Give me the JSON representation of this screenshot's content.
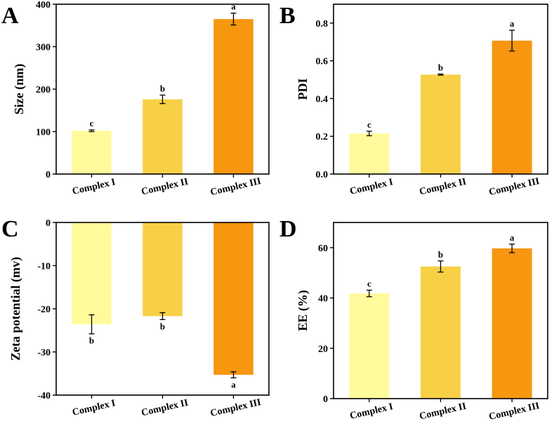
{
  "chart_data": [
    {
      "panel": "A",
      "type": "bar",
      "categories": [
        "Complex I",
        "Complex II",
        "Complex III"
      ],
      "values": [
        102,
        176,
        365
      ],
      "errors": [
        2,
        10,
        14
      ],
      "significance": [
        "c",
        "b",
        "a"
      ],
      "ylabel": "Size (nm)",
      "xlabel": "",
      "ylim": [
        0,
        400
      ],
      "yticks": [
        "0",
        "100",
        "200",
        "300",
        "400"
      ],
      "ytick_values": [
        0,
        100,
        200,
        300,
        400
      ],
      "colors": [
        "#FFFB9C",
        "#F7D046",
        "#F7960F"
      ]
    },
    {
      "panel": "B",
      "type": "bar",
      "categories": [
        "Complex I",
        "Complex II",
        "Complex III"
      ],
      "values": [
        0.215,
        0.527,
        0.707
      ],
      "errors": [
        0.012,
        0.003,
        0.055
      ],
      "significance": [
        "c",
        "b",
        "a"
      ],
      "ylabel": "PDI",
      "xlabel": "",
      "ylim": [
        0,
        0.9
      ],
      "yticks": [
        "0.0",
        "0.2",
        "0.4",
        "0.6",
        "0.8"
      ],
      "ytick_values": [
        0,
        0.2,
        0.4,
        0.6,
        0.8
      ],
      "colors": [
        "#FFFB9C",
        "#F7D046",
        "#F7960F"
      ]
    },
    {
      "panel": "C",
      "type": "bar",
      "categories": [
        "Complex I",
        "Complex II",
        "Complex III"
      ],
      "values": [
        -23.6,
        -21.7,
        -35.3
      ],
      "errors": [
        2.2,
        0.8,
        0.7
      ],
      "significance": [
        "b",
        "b",
        "a"
      ],
      "ylabel": "Zeta potential (mv)",
      "xlabel": "",
      "ylim": [
        -40,
        0
      ],
      "yticks": [
        "-40",
        "-30",
        "-20",
        "-10",
        "0"
      ],
      "ytick_values": [
        -40,
        -30,
        -20,
        -10,
        0
      ],
      "colors": [
        "#FFFB9C",
        "#F7D046",
        "#F7960F"
      ]
    },
    {
      "panel": "D",
      "type": "bar",
      "categories": [
        "Complex I",
        "Complex II",
        "Complex III"
      ],
      "values": [
        41.8,
        52.5,
        59.7
      ],
      "errors": [
        1.3,
        2.2,
        1.7
      ],
      "significance": [
        "c",
        "b",
        "a"
      ],
      "ylabel": "EE (%)",
      "xlabel": "",
      "ylim": [
        0,
        70
      ],
      "yticks": [
        "0",
        "20",
        "40",
        "60"
      ],
      "ytick_values": [
        0,
        20,
        40,
        60
      ],
      "colors": [
        "#FFFB9C",
        "#F7D046",
        "#F7960F"
      ]
    }
  ]
}
